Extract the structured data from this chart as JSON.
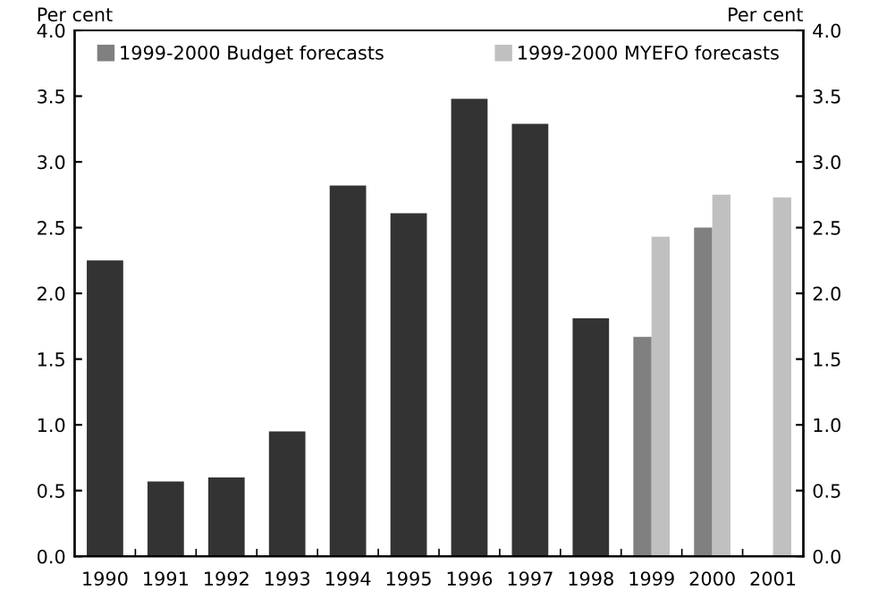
{
  "chart_data": {
    "type": "bar",
    "categories": [
      "1990",
      "1991",
      "1992",
      "1993",
      "1994",
      "1995",
      "1996",
      "1997",
      "1998",
      "1999",
      "2000",
      "2001"
    ],
    "series": [
      {
        "color": "#333333",
        "values": [
          2.25,
          0.57,
          0.6,
          0.95,
          2.82,
          2.61,
          3.48,
          3.29,
          1.81,
          null,
          null,
          null
        ]
      },
      {
        "name": "1999-2000 Budget forecasts",
        "color": "#808080",
        "values": [
          null,
          null,
          null,
          null,
          null,
          null,
          null,
          null,
          null,
          1.67,
          2.5,
          null
        ]
      },
      {
        "name": "1999-2000 MYEFO forecasts",
        "color": "#c0c0c0",
        "values": [
          null,
          null,
          null,
          null,
          null,
          null,
          null,
          null,
          null,
          2.43,
          2.75,
          2.73
        ]
      }
    ],
    "ylabel": "Per cent",
    "y2label": "Per cent",
    "ylim": [
      0,
      4.0
    ],
    "yticks": [
      {
        "value": 0,
        "label": "0.0"
      },
      0.5,
      {
        "value": 1,
        "label": "1.0"
      },
      1.5,
      {
        "value": 2,
        "label": "2.0"
      },
      2.5,
      {
        "value": 3,
        "label": "3.0"
      },
      3.5,
      {
        "value": 4,
        "label": "4.0"
      }
    ],
    "y2lim": [
      0,
      4.0
    ],
    "y2ticks": [
      {
        "value": 0,
        "label": "0.0"
      },
      0.5,
      {
        "value": 1,
        "label": "1.0"
      },
      1.5,
      {
        "value": 2,
        "label": "2.0"
      },
      2.5,
      {
        "value": 3,
        "label": "3.0"
      },
      3.5,
      {
        "value": 4,
        "label": "4.0"
      }
    ],
    "grid": false,
    "legend": "top"
  }
}
